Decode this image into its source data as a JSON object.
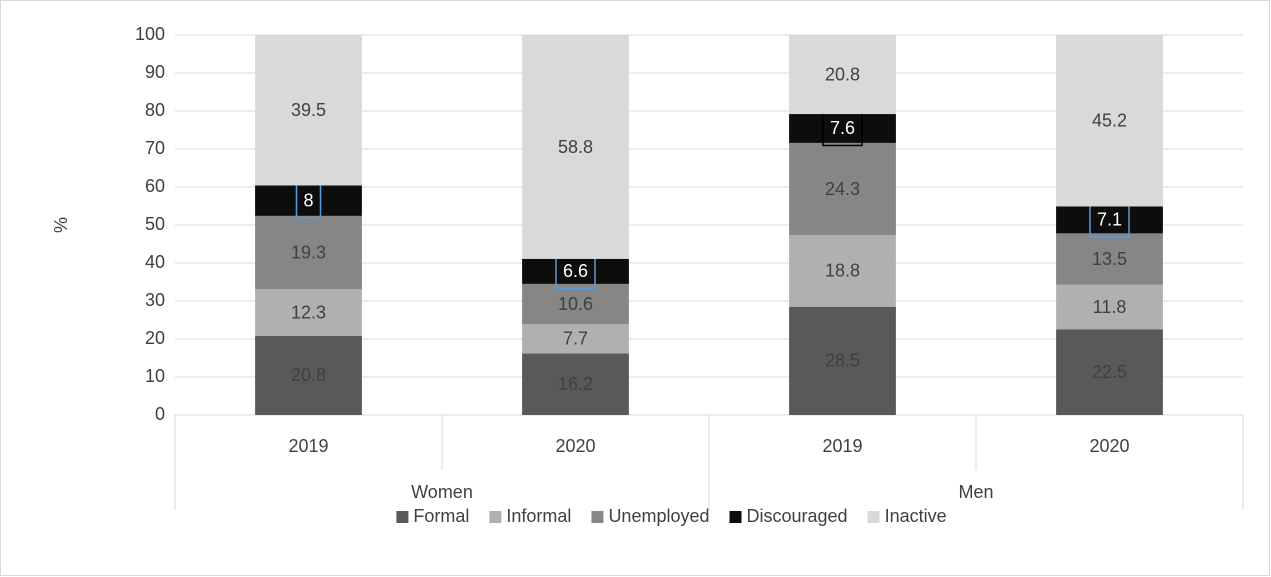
{
  "chart_data": {
    "type": "stacked_bar",
    "y_label": "%",
    "categories": [
      "2019",
      "2020",
      "2019",
      "2020"
    ],
    "groups": [
      "Women",
      "Men"
    ],
    "ylim": [
      0,
      100
    ],
    "yticks": [
      0,
      10,
      20,
      30,
      40,
      50,
      60,
      70,
      80,
      90,
      100
    ],
    "grid": true,
    "legend": "bottom",
    "series": [
      {
        "name": "Formal",
        "color": "#595959",
        "label_color": "#404040",
        "values": [
          20.8,
          16.2,
          28.5,
          22.5
        ]
      },
      {
        "name": "Informal",
        "color": "#b0b0b0",
        "label_color": "#404040",
        "values": [
          12.3,
          7.7,
          18.8,
          11.8
        ]
      },
      {
        "name": "Unemployed",
        "color": "#868686",
        "label_color": "#404040",
        "values": [
          19.3,
          10.6,
          24.3,
          13.5
        ]
      },
      {
        "name": "Discouraged",
        "color": "#0d0d0d",
        "label_color": "#ffffff",
        "label_box_colors": [
          "#5b9bd5",
          "#5b9bd5",
          "#000000",
          "#5b9bd5"
        ],
        "values": [
          8,
          6.6,
          7.6,
          7.1
        ]
      },
      {
        "name": "Inactive",
        "color": "#d9d9d9",
        "label_color": "#404040",
        "values": [
          39.5,
          58.8,
          20.8,
          45.2
        ]
      }
    ]
  }
}
